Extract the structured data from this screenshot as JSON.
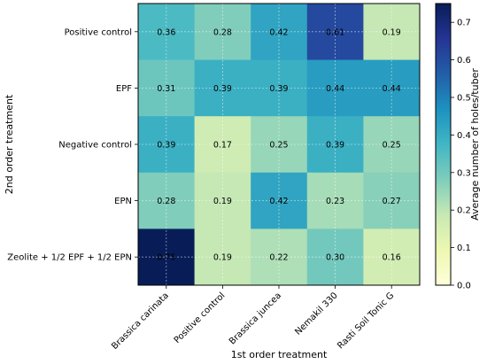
{
  "chart_data": {
    "type": "heatmap",
    "xlabel": "1st order treatment",
    "ylabel": "2nd order treatment",
    "x_categories": [
      "Brassica carinata",
      "Positive control",
      "Brassica juncea",
      "Nemakil 330",
      "Rasti Soil Tonic G"
    ],
    "y_categories": [
      "Positive control",
      "EPF",
      "Negative control",
      "EPN",
      "Zeolite + 1/2 EPF + 1/2 EPN"
    ],
    "values": [
      [
        0.36,
        0.28,
        0.42,
        0.61,
        0.19
      ],
      [
        0.31,
        0.39,
        0.39,
        0.44,
        0.44
      ],
      [
        0.39,
        0.17,
        0.25,
        0.39,
        0.25
      ],
      [
        0.28,
        0.19,
        0.42,
        0.23,
        0.27
      ],
      [
        0.75,
        0.19,
        0.22,
        0.3,
        0.16
      ]
    ],
    "value_labels": [
      [
        "0.36",
        "0.28",
        "0.42",
        "0.61",
        "0.19"
      ],
      [
        "0.31",
        "0.39",
        "0.39",
        "0.44",
        "0.44"
      ],
      [
        "0.39",
        "0.17",
        "0.25",
        "0.39",
        "0.25"
      ],
      [
        "0.28",
        "0.19",
        "0.42",
        "0.23",
        "0.27"
      ],
      [
        "0.75",
        "0.19",
        "0.22",
        "0.30",
        "0.16"
      ]
    ],
    "colorbar": {
      "label": "Average number of holes/tuber",
      "range": [
        0.0,
        0.75
      ],
      "ticks": [
        0.0,
        0.1,
        0.2,
        0.3,
        0.4,
        0.5,
        0.6,
        0.7
      ],
      "tick_labels": [
        "0.0",
        "0.1",
        "0.2",
        "0.3",
        "0.4",
        "0.5",
        "0.6",
        "0.7"
      ],
      "colormap": "YlGnBu"
    },
    "grid": true
  }
}
